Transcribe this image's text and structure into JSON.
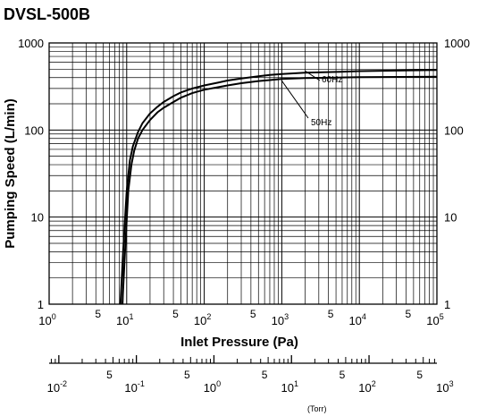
{
  "chart_data": {
    "type": "line",
    "title": "DVSL-500B",
    "xlabel": "Inlet Pressure (Pa)",
    "ylabel": "Pumping Speed (L/min)",
    "xscale": "log",
    "yscale": "log",
    "xlim": [
      1,
      100000
    ],
    "ylim": [
      1,
      1000
    ],
    "grid": true,
    "x_tick_labels": [
      {
        "x": 1,
        "base": "10",
        "exp": "0"
      },
      {
        "x": 5,
        "text": "5"
      },
      {
        "x": 10,
        "base": "10",
        "exp": "1"
      },
      {
        "x": 50,
        "text": "5"
      },
      {
        "x": 100,
        "base": "10",
        "exp": "2"
      },
      {
        "x": 500,
        "text": "5"
      },
      {
        "x": 1000,
        "base": "10",
        "exp": "3"
      },
      {
        "x": 5000,
        "text": "5"
      },
      {
        "x": 10000,
        "base": "10",
        "exp": "4"
      },
      {
        "x": 50000,
        "text": "5"
      },
      {
        "x": 100000,
        "base": "10",
        "exp": "5"
      }
    ],
    "y_tick_labels": [
      {
        "y": 1,
        "text": "1"
      },
      {
        "y": 10,
        "text": "10"
      },
      {
        "y": 100,
        "text": "100"
      },
      {
        "y": 1000,
        "text": "1000"
      }
    ],
    "secondary_axis": {
      "unit_label": "(Torr)",
      "pa_per_unit": 133.322,
      "labels": [
        {
          "torr": 0.01,
          "base": "10",
          "exp": "-2"
        },
        {
          "torr": 0.05,
          "text": "5"
        },
        {
          "torr": 0.1,
          "base": "10",
          "exp": "-1"
        },
        {
          "torr": 0.5,
          "text": "5"
        },
        {
          "torr": 1,
          "base": "10",
          "exp": "0"
        },
        {
          "torr": 5,
          "text": "5"
        },
        {
          "torr": 10,
          "base": "10",
          "exp": "1"
        },
        {
          "torr": 50,
          "text": "5"
        },
        {
          "torr": 100,
          "base": "10",
          "exp": "2"
        },
        {
          "torr": 500,
          "text": "5"
        },
        {
          "torr": 1000,
          "base": "10",
          "exp": "3"
        }
      ]
    },
    "series": [
      {
        "name": "60Hz",
        "x": [
          8.3,
          9,
          10,
          11,
          12,
          14,
          16,
          20,
          25,
          30,
          40,
          50,
          70,
          100,
          150,
          200,
          300,
          500,
          700,
          1000,
          2000,
          5000,
          10000,
          100000
        ],
        "y": [
          1,
          4,
          20,
          45,
          65,
          95,
          120,
          155,
          185,
          210,
          245,
          270,
          300,
          325,
          350,
          370,
          390,
          415,
          430,
          440,
          455,
          465,
          475,
          490
        ]
      },
      {
        "name": "50Hz",
        "x": [
          8.8,
          9.5,
          10.5,
          11.5,
          12.5,
          14,
          16,
          20,
          25,
          30,
          40,
          50,
          70,
          100,
          150,
          200,
          300,
          500,
          700,
          1000,
          2000,
          5000,
          10000,
          100000
        ],
        "y": [
          1,
          4,
          20,
          40,
          58,
          80,
          100,
          130,
          160,
          180,
          210,
          235,
          265,
          290,
          310,
          325,
          345,
          365,
          375,
          385,
          395,
          400,
          405,
          410
        ]
      }
    ]
  }
}
